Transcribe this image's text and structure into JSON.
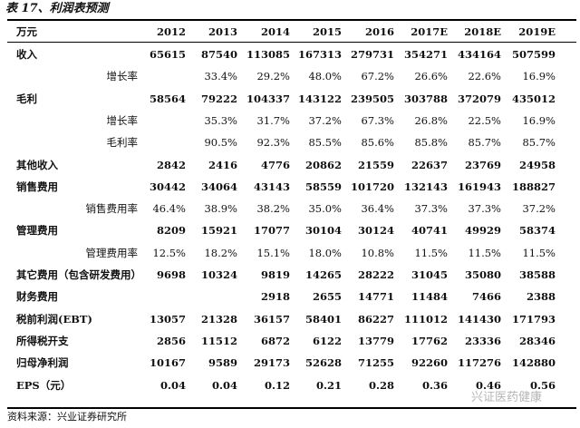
{
  "title": "表 17、利润表预测",
  "table": {
    "header": [
      "万元",
      "2012",
      "2013",
      "2014",
      "2015",
      "2016",
      "2017E",
      "2018E",
      "2019E"
    ],
    "rows": [
      {
        "label": "收入",
        "values": [
          "65615",
          "87540",
          "113085",
          "167313",
          "279731",
          "354271",
          "434164",
          "507599"
        ]
      },
      {
        "label": "增长率",
        "indent": true,
        "values": [
          null,
          "33.4%",
          "29.2%",
          "48.0%",
          "67.2%",
          "26.6%",
          "22.6%",
          "16.9%"
        ]
      },
      {
        "label": "毛利",
        "values": [
          "58564",
          "79222",
          "104337",
          "143122",
          "239505",
          "303788",
          "372079",
          "435012"
        ]
      },
      {
        "label": "增长率",
        "indent": true,
        "values": [
          null,
          "35.3%",
          "31.7%",
          "37.2%",
          "67.3%",
          "26.8%",
          "22.5%",
          "16.9%"
        ]
      },
      {
        "label": "毛利率",
        "indent": true,
        "values": [
          null,
          "90.5%",
          "92.3%",
          "85.5%",
          "85.6%",
          "85.8%",
          "85.7%",
          "85.7%"
        ]
      },
      {
        "label": "其他收入",
        "values": [
          "2842",
          "2416",
          "4776",
          "20862",
          "21559",
          "22637",
          "23769",
          "24958"
        ]
      },
      {
        "label": "销售费用",
        "values": [
          "30442",
          "34064",
          "43143",
          "58559",
          "101720",
          "132143",
          "161943",
          "188827"
        ]
      },
      {
        "label": "销售费用率",
        "indent": true,
        "values": [
          "46.4%",
          "38.9%",
          "38.2%",
          "35.0%",
          "36.4%",
          "37.3%",
          "37.3%",
          "37.2%"
        ]
      },
      {
        "label": "管理费用",
        "values": [
          "8209",
          "15921",
          "17077",
          "30104",
          "30124",
          "40741",
          "49929",
          "58374"
        ]
      },
      {
        "label": "管理费用率",
        "indent": true,
        "values": [
          "12.5%",
          "18.2%",
          "15.1%",
          "18.0%",
          "10.8%",
          "11.5%",
          "11.5%",
          "11.5%"
        ]
      },
      {
        "label": "其它费用（包含研发费用）",
        "values": [
          "9698",
          "10324",
          "9819",
          "14265",
          "28222",
          "31045",
          "35080",
          "38588"
        ]
      },
      {
        "label": "财务费用",
        "values": [
          null,
          null,
          "2918",
          "2655",
          "14771",
          "11484",
          "7466",
          "2388"
        ]
      },
      {
        "label": "税前利润(EBT)",
        "values": [
          "13057",
          "21328",
          "36157",
          "58401",
          "86227",
          "111012",
          "141430",
          "171793"
        ]
      },
      {
        "label": "所得税开支",
        "values": [
          "2856",
          "11512",
          "6872",
          "6122",
          "13779",
          "17762",
          "23336",
          "28346"
        ]
      },
      {
        "label": "归母净利润",
        "values": [
          "10167",
          "9589",
          "29173",
          "52628",
          "71255",
          "92260",
          "117276",
          "142880"
        ]
      },
      {
        "label": "EPS（元）",
        "values": [
          "0.04",
          "0.04",
          "0.12",
          "0.21",
          "0.28",
          "0.36",
          "0.46",
          "0.56"
        ]
      }
    ]
  },
  "source": "资料来源：兴业证券研究所",
  "watermark": "兴证医药健康"
}
